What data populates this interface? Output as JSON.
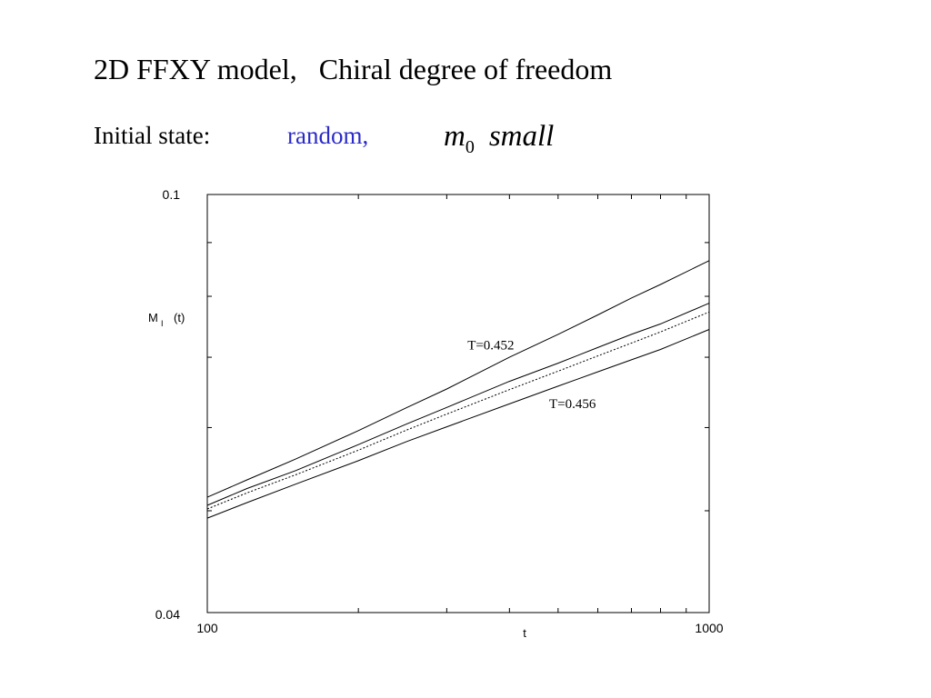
{
  "slide": {
    "title": "2D FFXY model,   Chiral degree of freedom",
    "initial_label": "Initial state:",
    "initial_value": "random,",
    "initial_value_color": "#2b2bc8",
    "m_symbol": "m",
    "m_subscript": "0",
    "m_word": "small"
  },
  "chart_data": {
    "type": "line",
    "xlabel": "t",
    "ylabel_main": "M",
    "ylabel_sub": "I",
    "ylabel_rest": "(t)",
    "xscale": "log",
    "yscale": "log",
    "xlim": [
      100,
      1000
    ],
    "ylim": [
      0.04,
      0.1
    ],
    "x_tick_labels": [
      "100",
      "1000"
    ],
    "y_tick_labels": [
      "0.1",
      "0.04"
    ],
    "grid": false,
    "series": [
      {
        "style": "solid",
        "x": [
          100,
          120,
          150,
          200,
          250,
          300,
          400,
          500,
          600,
          700,
          800,
          1000
        ],
        "y": [
          0.0515,
          0.0535,
          0.056,
          0.0596,
          0.0627,
          0.0653,
          0.07,
          0.0736,
          0.0768,
          0.0797,
          0.0821,
          0.0865
        ]
      },
      {
        "style": "solid",
        "x": [
          100,
          120,
          150,
          200,
          250,
          300,
          400,
          500,
          600,
          700,
          800,
          1000
        ],
        "y": [
          0.0506,
          0.0525,
          0.0546,
          0.0578,
          0.0605,
          0.0627,
          0.0664,
          0.0691,
          0.0715,
          0.0736,
          0.0753,
          0.0788
        ]
      },
      {
        "style": "dotted",
        "x": [
          100,
          120,
          150,
          200,
          250,
          300,
          400,
          500,
          600,
          700,
          800,
          1000
        ],
        "y": [
          0.0502,
          0.052,
          0.0541,
          0.0571,
          0.0597,
          0.0618,
          0.0652,
          0.0679,
          0.0702,
          0.0722,
          0.074,
          0.0773
        ]
      },
      {
        "style": "solid",
        "x": [
          100,
          120,
          150,
          200,
          250,
          300,
          400,
          500,
          600,
          700,
          800,
          1000
        ],
        "y": [
          0.0492,
          0.0509,
          0.053,
          0.0558,
          0.0582,
          0.0601,
          0.0632,
          0.0657,
          0.0678,
          0.0696,
          0.0712,
          0.0744
        ]
      }
    ],
    "annotations": [
      {
        "text": "T=0.452",
        "x": 330,
        "y": 0.0712
      },
      {
        "text": "T=0.456",
        "x": 480,
        "y": 0.0626
      }
    ]
  }
}
